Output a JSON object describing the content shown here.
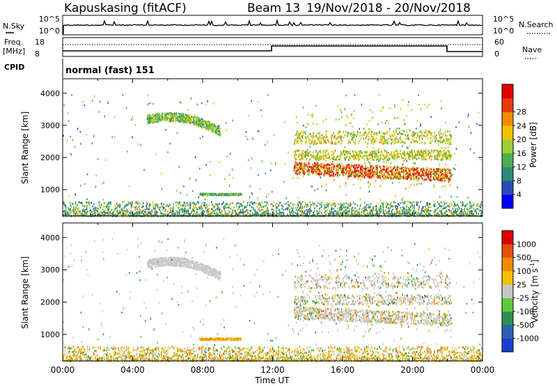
{
  "header": {
    "station": "Kapuskasing (fitACF)",
    "beam": "Beam 13",
    "date_range": "19/Nov/2018 - 20/Nov/2018"
  },
  "panels": {
    "nsky": {
      "left_label": "N.Sky",
      "right_label": "N.Search",
      "left_ticks": [
        "10^5",
        "10^0"
      ],
      "right_ticks": [
        "10^5",
        "10^0"
      ]
    },
    "freq": {
      "left_label_1": "Freq.",
      "left_label_2": "[MHz]",
      "left_ticks": [
        "18",
        "8"
      ],
      "right_label": "Nave",
      "right_ticks": [
        "60",
        "0"
      ]
    },
    "cpid": {
      "label": "CPID",
      "value": "normal (fast) 151"
    }
  },
  "chart_data": [
    {
      "type": "heatmap",
      "name": "power",
      "ylabel": "Slant Range [km]",
      "ylim": [
        180,
        4450
      ],
      "yticks": [
        "1000",
        "2000",
        "3000",
        "4000"
      ],
      "xlim": [
        "00:00",
        "24:00"
      ],
      "colorbar": {
        "label": "Power [dB]",
        "ticks": [
          "4",
          "8",
          "12",
          "16",
          "20",
          "24",
          "28"
        ],
        "colors": [
          "#0000ff",
          "#2a4cb8",
          "#2e8a7a",
          "#4fae50",
          "#9ccf3a",
          "#f2c200",
          "#f08a00",
          "#e83a0a",
          "#e00000"
        ]
      }
    },
    {
      "type": "heatmap",
      "name": "velocity",
      "ylabel": "Slant Range [km]",
      "ylim": [
        180,
        4450
      ],
      "yticks": [
        "1000",
        "2000",
        "3000",
        "4000"
      ],
      "xlim": [
        "00:00",
        "24:00"
      ],
      "xlabel": "Time UT",
      "xticks": [
        "00:00",
        "04:00",
        "08:00",
        "12:00",
        "16:00",
        "20:00",
        "00:00"
      ],
      "colorbar": {
        "label_main": "Velocity",
        "label_unit": "[m s",
        "label_exp": "-1",
        "label_close": "]",
        "ticks": [
          "1000",
          "500",
          "100",
          "25",
          "-25",
          "-100",
          "-500",
          "-1000"
        ],
        "colors": [
          "#1a3fd0",
          "#2f5fb0",
          "#2e8f50",
          "#62c93a",
          "#c8c8c8",
          "#f2c200",
          "#f08a00",
          "#e85010",
          "#e00000"
        ]
      }
    }
  ]
}
